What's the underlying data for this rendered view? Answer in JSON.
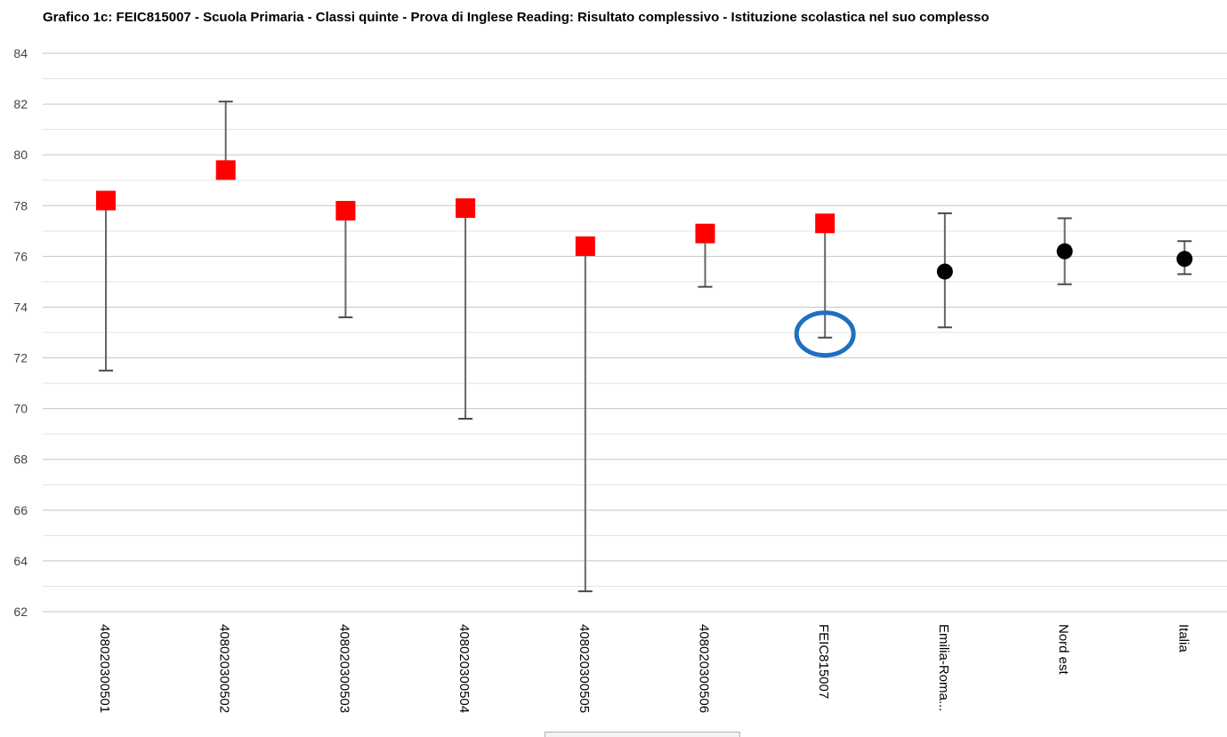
{
  "chart_data": {
    "type": "scatter",
    "title": "Grafico 1c: FEIC815007 - Scuola Primaria - Classi quinte - Prova di Inglese Reading: Risultato complessivo - Istituzione scolastica nel suo complesso",
    "xlabel": "",
    "ylabel": "",
    "ylim": [
      62,
      84
    ],
    "y_ticks": [
      62,
      64,
      66,
      68,
      70,
      72,
      74,
      76,
      78,
      80,
      82,
      84
    ],
    "grid": true,
    "legend": "none",
    "categories": [
      "408020300501",
      "408020300502",
      "408020300503",
      "408020300504",
      "408020300505",
      "408020300506",
      "FEIC815007",
      "Emilia-Roma...",
      "Nord est",
      "Italia"
    ],
    "points": [
      {
        "category": "408020300501",
        "value": 78.2,
        "low": 71.5,
        "high": 78.2,
        "marker": "square"
      },
      {
        "category": "408020300502",
        "value": 79.4,
        "low": 79.4,
        "high": 82.1,
        "marker": "square"
      },
      {
        "category": "408020300503",
        "value": 77.8,
        "low": 73.6,
        "high": 77.8,
        "marker": "square"
      },
      {
        "category": "408020300504",
        "value": 77.9,
        "low": 69.6,
        "high": 77.9,
        "marker": "square"
      },
      {
        "category": "408020300505",
        "value": 76.4,
        "low": 62.8,
        "high": 76.4,
        "marker": "square"
      },
      {
        "category": "408020300506",
        "value": 76.9,
        "low": 74.8,
        "high": 76.9,
        "marker": "square"
      },
      {
        "category": "FEIC815007",
        "value": 77.3,
        "low": 72.8,
        "high": 77.3,
        "marker": "square"
      },
      {
        "category": "Emilia-Roma...",
        "value": 75.4,
        "low": 73.2,
        "high": 77.7,
        "marker": "circle"
      },
      {
        "category": "Nord est",
        "value": 76.2,
        "low": 74.9,
        "high": 77.5,
        "marker": "circle"
      },
      {
        "category": "Italia",
        "value": 75.9,
        "low": 75.3,
        "high": 76.6,
        "marker": "circle"
      }
    ],
    "annotation": {
      "category": "FEIC815007",
      "value": 72.8,
      "shape": "ellipse"
    },
    "colors": {
      "square_marker": "#ff0000",
      "circle_marker": "#000000",
      "error_bar": "#666666",
      "grid_major": "#c6c6c6",
      "grid_minor": "#e3e3e3",
      "annotation": "#1f6fbf",
      "tick_label": "#444444",
      "category_label": "#000000"
    }
  }
}
